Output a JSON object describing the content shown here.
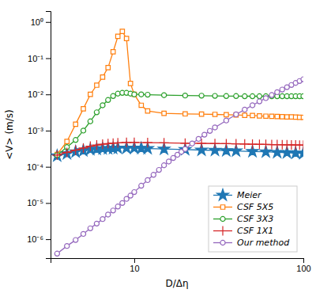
{
  "chart_data": {
    "type": "line",
    "xlabel": "D/Δη",
    "ylabel": "<V> (m/s)",
    "log": true,
    "grid": false,
    "legend": "lower right",
    "xlim": [
      3.2,
      100.0
    ],
    "ylim": [
      3e-07,
      2.0
    ],
    "xticks": [
      10,
      100
    ],
    "yticks": [
      {
        "value": 1e-06,
        "label": "10⁻⁶"
      },
      {
        "value": 1e-05,
        "label": "10⁻⁵"
      },
      {
        "value": 0.0001,
        "label": "10⁻⁴"
      },
      {
        "value": 0.001,
        "label": "10⁻³"
      },
      {
        "value": 0.01,
        "label": "10⁻²"
      },
      {
        "value": 0.1,
        "label": "10⁻¹"
      },
      {
        "value": 1,
        "label": "10⁰"
      }
    ],
    "series": [
      {
        "name": "Meier",
        "marker": "star",
        "line_style": "solid",
        "x": [
          3.5,
          4.0,
          4.5,
          5.0,
          5.5,
          6.0,
          6.5,
          7.0,
          7.5,
          8.0,
          9.0,
          10.0,
          11.0,
          12.0,
          15.0,
          20.0,
          25.0,
          30.0,
          35.0,
          40.0,
          50.0,
          60.0,
          70.0,
          80.0,
          90.0,
          100.0
        ],
        "values": [
          0.0002,
          0.00023,
          0.00026,
          0.00028,
          0.0003,
          0.00031,
          0.000315,
          0.00032,
          0.000325,
          0.00033,
          0.00033,
          0.00033,
          0.000325,
          0.00032,
          0.00031,
          0.0003,
          0.00029,
          0.000285,
          0.00028,
          0.000275,
          0.000265,
          0.00026,
          0.00025,
          0.000245,
          0.00024,
          0.000235
        ]
      },
      {
        "name": "CSF 5X5",
        "marker": "square",
        "line_style": "solid",
        "x": [
          3.5,
          4.0,
          4.5,
          5.0,
          5.5,
          6.0,
          6.5,
          7.0,
          7.5,
          8.0,
          8.5,
          9.0,
          9.5,
          10.0,
          11.0,
          12.0,
          15.0,
          20.0,
          25.0,
          30.0,
          35.0,
          40.0,
          45.0,
          50.0,
          55.0,
          60.0,
          65.0,
          70.0,
          75.0,
          80.0,
          85.0,
          90.0,
          95.0,
          100.0
        ],
        "values": [
          0.00022,
          0.0005,
          0.0015,
          0.004,
          0.01,
          0.018,
          0.03,
          0.055,
          0.15,
          0.4,
          0.55,
          0.35,
          0.02,
          0.01,
          0.005,
          0.0035,
          0.003,
          0.0029,
          0.00285,
          0.0028,
          0.00275,
          0.0027,
          0.00265,
          0.0026,
          0.00255,
          0.0025,
          0.00248,
          0.00245,
          0.00242,
          0.0024,
          0.00238,
          0.00236,
          0.00234,
          0.00232
        ]
      },
      {
        "name": "CSF 3X3",
        "marker": "circle",
        "line_style": "solid",
        "x": [
          3.5,
          4.0,
          4.5,
          5.0,
          5.5,
          6.0,
          6.5,
          7.0,
          7.5,
          8.0,
          8.5,
          9.0,
          9.5,
          10.0,
          11.0,
          12.0,
          15.0,
          20.0,
          25.0,
          30.0,
          35.0,
          40.0,
          45.0,
          50.0,
          55.0,
          60.0,
          65.0,
          70.0,
          75.0,
          80.0,
          85.0,
          90.0,
          95.0,
          100.0
        ],
        "values": [
          0.00021,
          0.00035,
          0.00055,
          0.001,
          0.0018,
          0.0032,
          0.005,
          0.007,
          0.009,
          0.0105,
          0.011,
          0.011,
          0.0105,
          0.01,
          0.01,
          0.0098,
          0.0095,
          0.0093,
          0.0092,
          0.0091,
          0.009,
          0.009,
          0.0089,
          0.0089,
          0.0089,
          0.0089,
          0.0089,
          0.0089,
          0.0089,
          0.0089,
          0.0089,
          0.0089,
          0.0089,
          0.0089
        ]
      },
      {
        "name": "CSF 1X1",
        "marker": "plus",
        "line_style": "solid",
        "x": [
          3.5,
          4.0,
          4.5,
          5.0,
          5.5,
          6.0,
          6.5,
          7.0,
          7.5,
          8.0,
          9.0,
          10.0,
          12.0,
          15.0,
          20.0,
          25.0,
          30.0,
          35.0,
          40.0,
          45.0,
          50.0,
          55.0,
          60.0,
          65.0,
          70.0,
          75.0,
          80.0,
          85.0,
          90.0,
          95.0,
          100.0
        ],
        "values": [
          0.00021,
          0.00025,
          0.00029,
          0.00033,
          0.00037,
          0.0004,
          0.00042,
          0.00044,
          0.00045,
          0.00046,
          0.00047,
          0.00047,
          0.000465,
          0.00046,
          0.00045,
          0.000445,
          0.00044,
          0.000435,
          0.00043,
          0.000425,
          0.00042,
          0.000418,
          0.000415,
          0.000412,
          0.00041,
          0.000408,
          0.000405,
          0.000403,
          0.0004,
          0.000398,
          0.000395
        ]
      },
      {
        "name": "Our method",
        "marker": "circle",
        "line_style": "solid",
        "x": [
          3.5,
          4.0,
          4.5,
          5.0,
          5.5,
          6.0,
          6.5,
          7.0,
          7.5,
          8.0,
          8.5,
          9.0,
          9.5,
          10.0,
          11.0,
          12.0,
          13.0,
          14.0,
          15.0,
          16.0,
          17.0,
          18.0,
          19.0,
          20.0,
          22.0,
          24.0,
          26.0,
          28.0,
          30.0,
          35.0,
          40.0,
          45.0,
          50.0,
          55.0,
          60.0,
          65.0,
          70.0,
          75.0,
          80.0,
          85.0,
          90.0,
          95.0,
          100.0
        ],
        "values": [
          4e-07,
          6.5e-07,
          9.5e-07,
          1.4e-06,
          2e-06,
          2.7e-06,
          3.6e-06,
          4.8e-06,
          6.2e-06,
          8e-06,
          1e-05,
          1.3e-05,
          1.6e-05,
          2e-05,
          3e-05,
          4.3e-05,
          6e-05,
          8.2e-05,
          0.00011,
          0.00014,
          0.000175,
          0.000215,
          0.00026,
          0.00031,
          0.00044,
          0.00059,
          0.00077,
          0.00098,
          0.00122,
          0.0019,
          0.0028,
          0.0038,
          0.005,
          0.0064,
          0.0079,
          0.0096,
          0.0115,
          0.0136,
          0.0158,
          0.0182,
          0.0207,
          0.0234,
          0.0262
        ]
      }
    ]
  }
}
